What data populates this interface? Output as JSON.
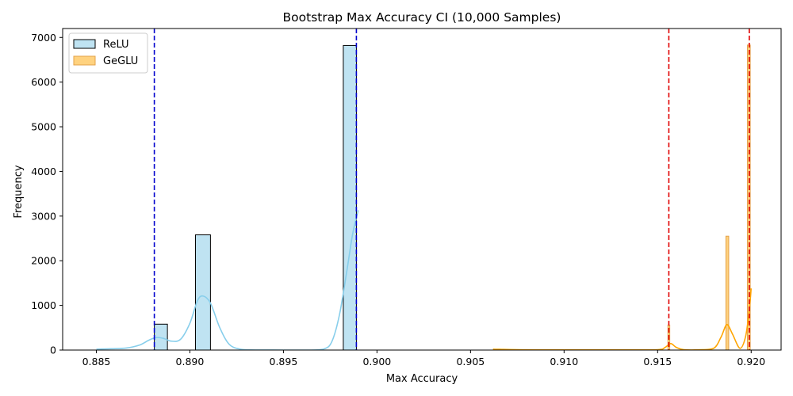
{
  "chart_data": {
    "type": "histogram",
    "title": "Bootstrap Max Accuracy CI (10,000 Samples)",
    "xlabel": "Max Accuracy",
    "ylabel": "Frequency",
    "xlim": [
      0.8832,
      0.9216
    ],
    "ylim": [
      0,
      7200
    ],
    "xticks": [
      0.885,
      0.89,
      0.895,
      0.9,
      0.905,
      0.91,
      0.915,
      0.92
    ],
    "xtick_labels": [
      "0.885",
      "0.890",
      "0.895",
      "0.900",
      "0.905",
      "0.910",
      "0.915",
      "0.920"
    ],
    "yticks": [
      0,
      1000,
      2000,
      3000,
      4000,
      5000,
      6000,
      7000
    ],
    "ytick_labels": [
      "0",
      "1000",
      "2000",
      "3000",
      "4000",
      "5000",
      "6000",
      "7000"
    ],
    "legend_position": "upper-left",
    "series": [
      {
        "name": "ReLU",
        "fill_color": "#bfe3f2",
        "edge_color": "#000000",
        "kde_color": "#87ceeb",
        "bins": [
          {
            "x0": 0.8881,
            "x1": 0.8888,
            "count": 580
          },
          {
            "x0": 0.8903,
            "x1": 0.8911,
            "count": 2580
          },
          {
            "x0": 0.8982,
            "x1": 0.8989,
            "count": 6820
          }
        ],
        "kde": [
          [
            0.885,
            20
          ],
          [
            0.8858,
            30
          ],
          [
            0.8866,
            45
          ],
          [
            0.8873,
            110
          ],
          [
            0.8878,
            220
          ],
          [
            0.8882,
            280
          ],
          [
            0.8886,
            260
          ],
          [
            0.889,
            200
          ],
          [
            0.8895,
            240
          ],
          [
            0.89,
            600
          ],
          [
            0.8904,
            1100
          ],
          [
            0.8907,
            1210
          ],
          [
            0.8911,
            1050
          ],
          [
            0.8916,
            500
          ],
          [
            0.8921,
            130
          ],
          [
            0.8927,
            20
          ],
          [
            0.8935,
            2
          ],
          [
            0.895,
            0
          ],
          [
            0.8965,
            0
          ],
          [
            0.8972,
            30
          ],
          [
            0.8976,
            200
          ],
          [
            0.898,
            800
          ],
          [
            0.8984,
            1800
          ],
          [
            0.8987,
            2600
          ],
          [
            0.899,
            3130
          ]
        ],
        "ci_lines": [
          0.8881,
          0.8989
        ],
        "ci_color": "#0000cd"
      },
      {
        "name": "GeGLU",
        "fill_color": "#ffd27f",
        "edge_color": "#e3a14a",
        "kde_color": "#ffa500",
        "bins": [
          {
            "x0": 0.91555,
            "x1": 0.91565,
            "count": 560
          },
          {
            "x0": 0.91865,
            "x1": 0.9188,
            "count": 2550
          },
          {
            "x0": 0.9198,
            "x1": 0.91995,
            "count": 6830
          }
        ],
        "kde": [
          [
            0.9062,
            20
          ],
          [
            0.908,
            5
          ],
          [
            0.91,
            3
          ],
          [
            0.913,
            3
          ],
          [
            0.915,
            8
          ],
          [
            0.9154,
            60
          ],
          [
            0.9157,
            145
          ],
          [
            0.916,
            60
          ],
          [
            0.9164,
            8
          ],
          [
            0.9172,
            5
          ],
          [
            0.918,
            40
          ],
          [
            0.9184,
            300
          ],
          [
            0.9187,
            570
          ],
          [
            0.919,
            360
          ],
          [
            0.9194,
            40
          ],
          [
            0.9197,
            300
          ],
          [
            0.9199,
            900
          ],
          [
            0.92,
            1380
          ]
        ],
        "ci_lines": [
          0.9156,
          0.9199
        ],
        "ci_color": "#e00000"
      }
    ]
  }
}
